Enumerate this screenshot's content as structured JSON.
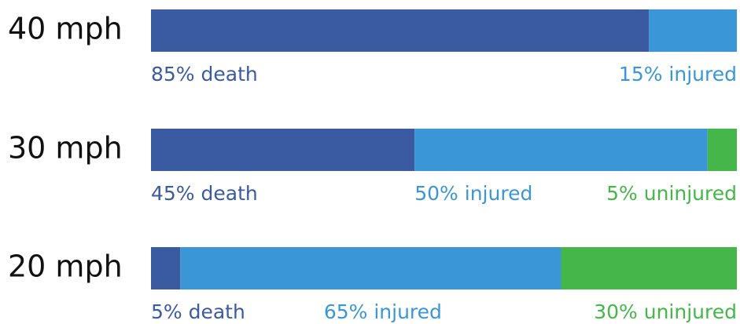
{
  "chart_data": {
    "type": "stacked-bar-horizontal",
    "categories": [
      "40 mph",
      "30 mph",
      "20 mph"
    ],
    "xlim": [
      0,
      100
    ],
    "series": [
      {
        "color": "#3b5ba0",
        "values": [
          85,
          45,
          5
        ],
        "value_labels": [
          "85% death",
          "45% death",
          "5% death"
        ]
      },
      {
        "color": "#3a96d6",
        "values": [
          15,
          50,
          65
        ],
        "value_labels": [
          "15% injured",
          "50% injured",
          "65% injured"
        ]
      },
      {
        "color": "#45b649",
        "values": [
          0,
          5,
          30
        ],
        "value_labels": [
          null,
          "5% uninjured",
          "30% uninjured"
        ]
      }
    ]
  }
}
